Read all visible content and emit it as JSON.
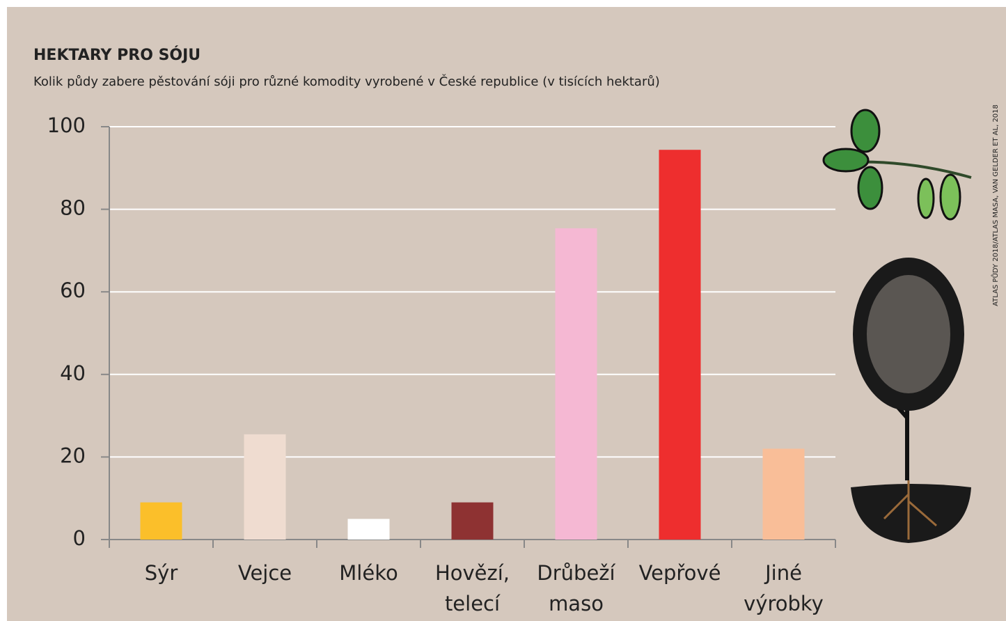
{
  "chart_data": {
    "type": "bar",
    "title": "HEKTARY PRO SÓJU",
    "subtitle": "Kolik půdy zabere pěstování sóji pro různé komodity vyrobené v České republice (v tisících hektarů)",
    "source": "ATLAS PŮDY 2018/ATLAS MASA, VAN GELDER ET AL, 2018",
    "categories": [
      "Sýr",
      "Vejce",
      "Mléko",
      "Hovězí, telecí",
      "Drůbeží maso",
      "Vepřové",
      "Jiné výrobky"
    ],
    "values": [
      9,
      25.5,
      5,
      9,
      75.4,
      94.4,
      22
    ],
    "colors": [
      "#fbbf2a",
      "#efdcd0",
      "#ffffff",
      "#8e3232",
      "#f5b8d3",
      "#ee2e2e",
      "#f9be98"
    ],
    "ylim": [
      0,
      100
    ],
    "yticks": [
      0,
      20,
      40,
      60,
      80,
      100
    ],
    "grid": true
  }
}
